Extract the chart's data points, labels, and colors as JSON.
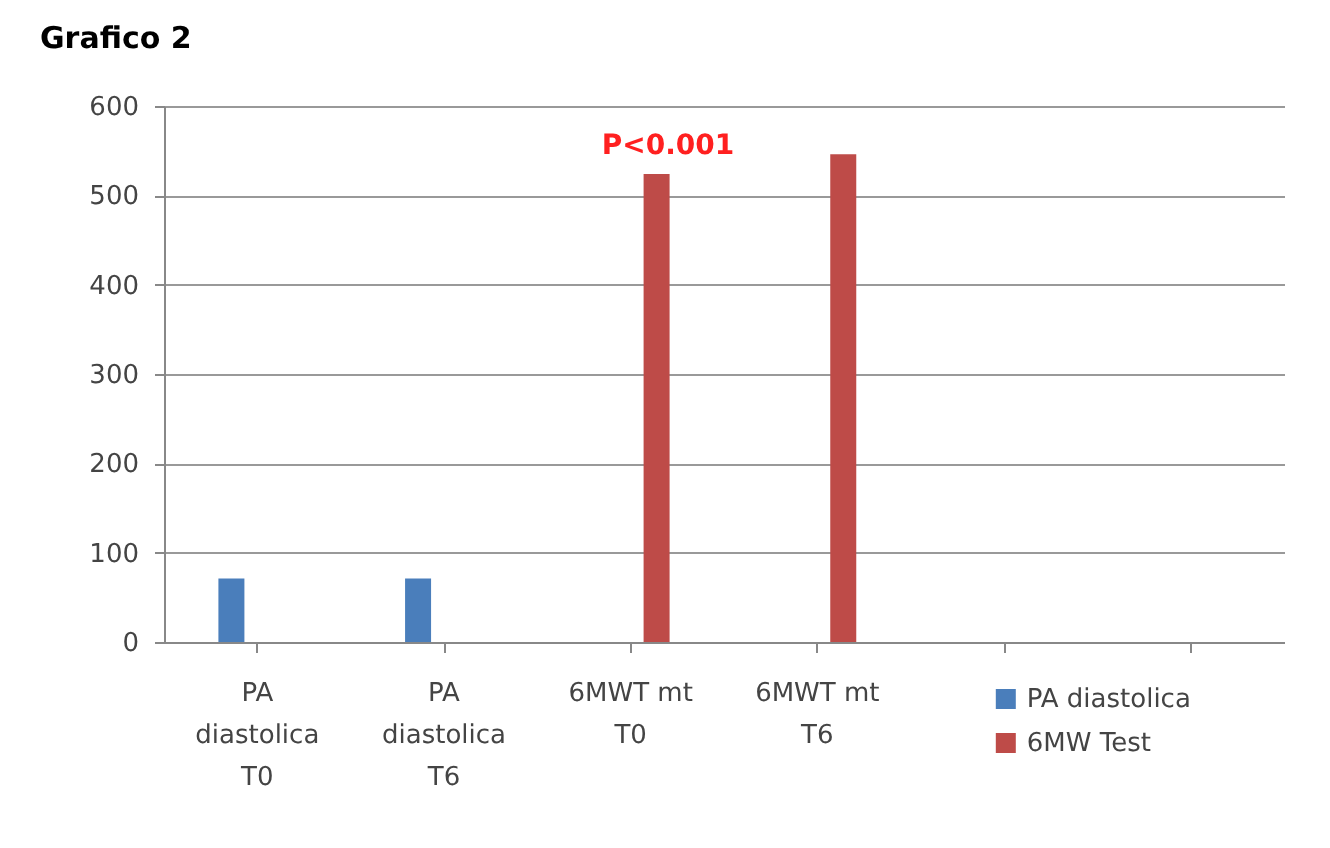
{
  "chart_data": {
    "type": "bar",
    "title": "Grafico 2",
    "categories": [
      "PA diastolica T0",
      "PA diastolica T6",
      "6MWT mt T0",
      "6MWT mt T6",
      null,
      null
    ],
    "series": [
      {
        "name": "PA diastolica",
        "color": "#4a7ebb",
        "values": [
          71,
          71,
          null,
          null,
          null,
          null
        ]
      },
      {
        "name": "6MW Test",
        "color": "#be4b48",
        "values": [
          null,
          null,
          524,
          546,
          null,
          null
        ]
      }
    ],
    "ylim": [
      0,
      600
    ],
    "yticks": [
      0,
      100,
      200,
      300,
      400,
      500,
      600
    ],
    "grid": "y",
    "legend": "bottom right",
    "annotations": [
      "P<0.001"
    ]
  }
}
